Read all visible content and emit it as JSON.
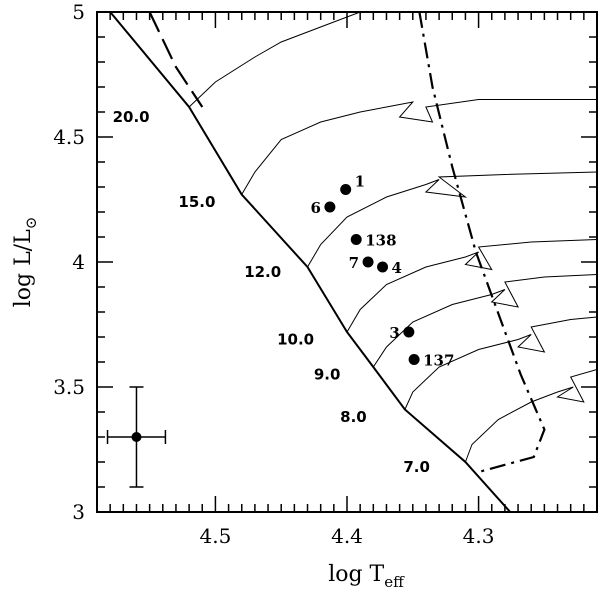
{
  "chart_data": {
    "type": "scatter",
    "xlabel_main": "log T",
    "xlabel_sub": "eff",
    "ylabel_main": "log L/L",
    "ylabel_sub": "⊙",
    "xlim": [
      4.59,
      4.21
    ],
    "ylim": [
      3.0,
      5.0
    ],
    "x_ticks": [
      4.5,
      4.4,
      4.3
    ],
    "x_tick_labels": [
      "4.5",
      "4.4",
      "4.3"
    ],
    "y_ticks": [
      3,
      3.5,
      4,
      4.5,
      5
    ],
    "y_tick_labels": [
      "3",
      "3.5",
      "4",
      "4.5",
      "5"
    ],
    "zams": [
      [
        4.58,
        5.0
      ],
      [
        4.52,
        4.62
      ],
      [
        4.48,
        4.27
      ],
      [
        4.43,
        3.98
      ],
      [
        4.4,
        3.72
      ],
      [
        4.38,
        3.58
      ],
      [
        4.356,
        3.41
      ],
      [
        4.31,
        3.2
      ],
      [
        4.276,
        3.0
      ]
    ],
    "mass_tracks": [
      {
        "label": "20.0",
        "label_at": [
          4.55,
          4.58
        ],
        "points": [
          [
            4.52,
            4.62
          ],
          [
            4.5,
            4.72
          ],
          [
            4.47,
            4.82
          ],
          [
            4.45,
            4.88
          ],
          [
            4.41,
            4.96
          ],
          [
            4.39,
            5.0
          ]
        ]
      },
      {
        "label": "15.0",
        "label_at": [
          4.5,
          4.24
        ],
        "points": [
          [
            4.48,
            4.27
          ],
          [
            4.47,
            4.36
          ],
          [
            4.45,
            4.49
          ],
          [
            4.42,
            4.56
          ],
          [
            4.39,
            4.6
          ],
          [
            4.37,
            4.62
          ],
          [
            4.35,
            4.64
          ],
          [
            4.36,
            4.58
          ],
          [
            4.335,
            4.56
          ],
          [
            4.34,
            4.62
          ],
          [
            4.3,
            4.65
          ],
          [
            4.21,
            4.65
          ]
        ]
      },
      {
        "label": "12.0",
        "label_at": [
          4.45,
          3.96
        ],
        "points": [
          [
            4.43,
            3.98
          ],
          [
            4.42,
            4.07
          ],
          [
            4.4,
            4.18
          ],
          [
            4.37,
            4.26
          ],
          [
            4.34,
            4.31
          ],
          [
            4.33,
            4.33
          ],
          [
            4.34,
            4.28
          ],
          [
            4.31,
            4.26
          ],
          [
            4.33,
            4.34
          ],
          [
            4.28,
            4.35
          ],
          [
            4.21,
            4.36
          ]
        ]
      },
      {
        "label": "10.0",
        "label_at": [
          4.425,
          3.69
        ],
        "points": [
          [
            4.4,
            3.72
          ],
          [
            4.39,
            3.81
          ],
          [
            4.37,
            3.91
          ],
          [
            4.34,
            3.98
          ],
          [
            4.31,
            4.02
          ],
          [
            4.3,
            4.04
          ],
          [
            4.31,
            3.99
          ],
          [
            4.29,
            3.97
          ],
          [
            4.3,
            4.06
          ],
          [
            4.26,
            4.08
          ],
          [
            4.21,
            4.09
          ]
        ]
      },
      {
        "label": "9.0",
        "label_at": [
          4.405,
          3.55
        ],
        "points": [
          [
            4.38,
            3.58
          ],
          [
            4.37,
            3.66
          ],
          [
            4.35,
            3.76
          ],
          [
            4.32,
            3.83
          ],
          [
            4.29,
            3.87
          ],
          [
            4.28,
            3.89
          ],
          [
            4.29,
            3.84
          ],
          [
            4.27,
            3.82
          ],
          [
            4.28,
            3.92
          ],
          [
            4.25,
            3.94
          ],
          [
            4.21,
            3.95
          ]
        ]
      },
      {
        "label": "8.0",
        "label_at": [
          4.385,
          3.38
        ],
        "points": [
          [
            4.356,
            3.41
          ],
          [
            4.35,
            3.48
          ],
          [
            4.33,
            3.58
          ],
          [
            4.3,
            3.65
          ],
          [
            4.27,
            3.69
          ],
          [
            4.26,
            3.71
          ],
          [
            4.27,
            3.66
          ],
          [
            4.25,
            3.64
          ],
          [
            4.26,
            3.74
          ],
          [
            4.23,
            3.77
          ],
          [
            4.21,
            3.78
          ]
        ]
      },
      {
        "label": "7.0",
        "label_at": [
          4.337,
          3.18
        ],
        "points": [
          [
            4.31,
            3.2
          ],
          [
            4.305,
            3.27
          ],
          [
            4.285,
            3.37
          ],
          [
            4.26,
            3.44
          ],
          [
            4.24,
            3.48
          ],
          [
            4.228,
            3.5
          ],
          [
            4.24,
            3.46
          ],
          [
            4.22,
            3.44
          ],
          [
            4.23,
            3.54
          ],
          [
            4.21,
            3.57
          ]
        ]
      }
    ],
    "dashed_line": [
      [
        4.55,
        5.0
      ],
      [
        4.53,
        4.78
      ],
      [
        4.51,
        4.62
      ]
    ],
    "dashdot_line": [
      [
        4.345,
        5.0
      ],
      [
        4.335,
        4.7
      ],
      [
        4.32,
        4.38
      ],
      [
        4.302,
        4.04
      ],
      [
        4.284,
        3.78
      ],
      [
        4.268,
        3.55
      ],
      [
        4.25,
        3.33
      ],
      [
        4.258,
        3.22
      ],
      [
        4.3,
        3.16
      ]
    ],
    "stars": [
      {
        "label": "1",
        "x": 4.401,
        "y": 4.29
      },
      {
        "label": "6",
        "x": 4.413,
        "y": 4.22
      },
      {
        "label": "138",
        "x": 4.393,
        "y": 4.09
      },
      {
        "label": "7",
        "x": 4.384,
        "y": 4.0
      },
      {
        "label": "4",
        "x": 4.373,
        "y": 3.98
      },
      {
        "label": "3",
        "x": 4.353,
        "y": 3.72
      },
      {
        "label": "137",
        "x": 4.349,
        "y": 3.61
      }
    ],
    "error_bar": {
      "x": 4.56,
      "y": 3.3,
      "xerr": 0.022,
      "yerr": 0.2
    }
  }
}
